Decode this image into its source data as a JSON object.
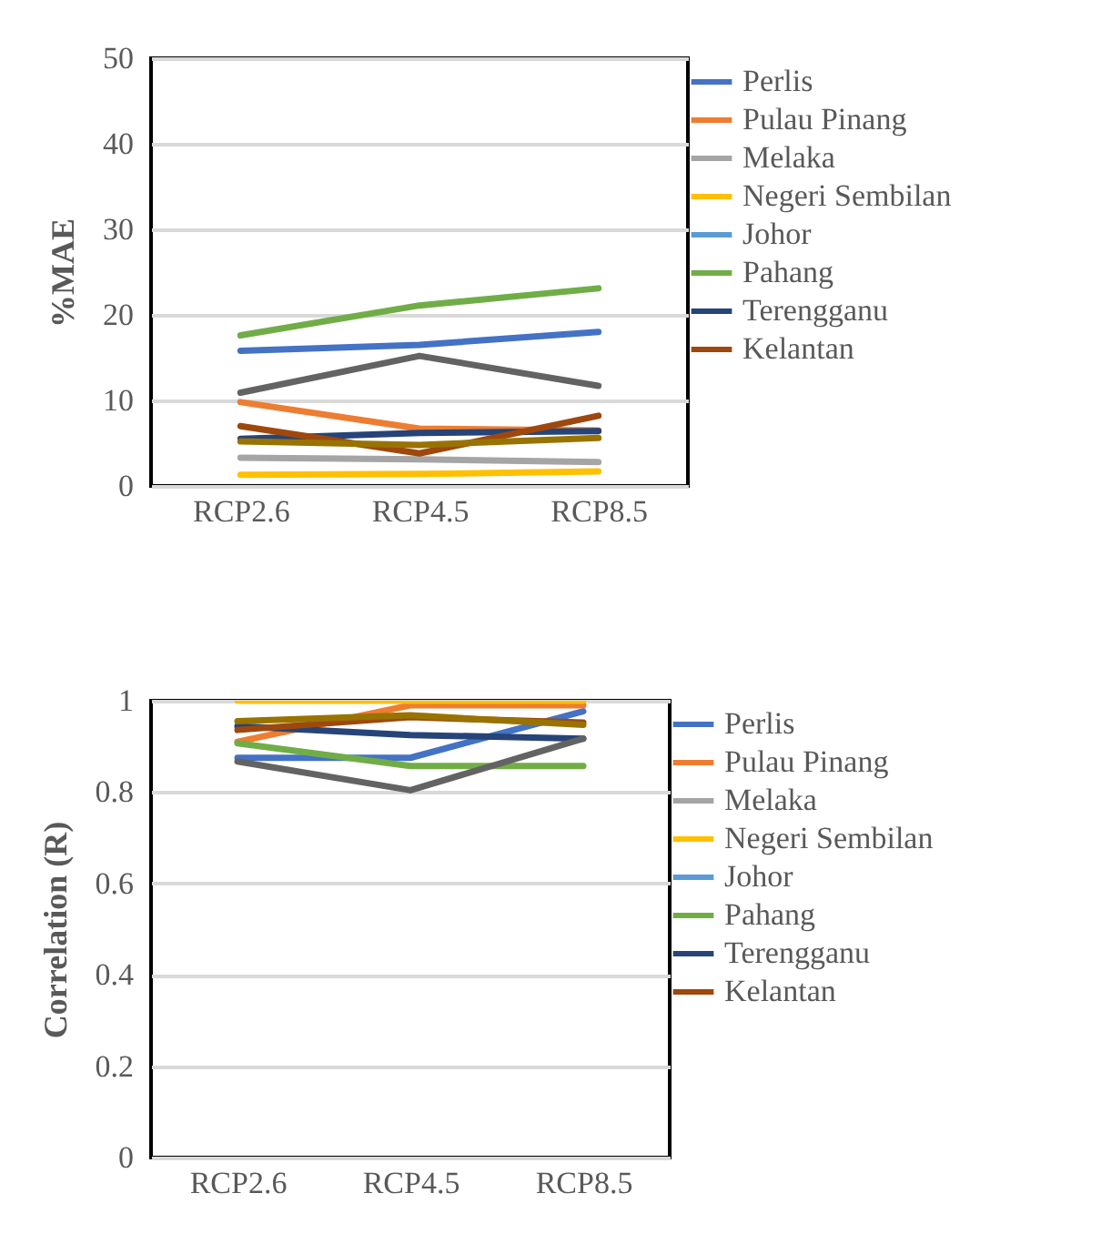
{
  "chart_data": [
    {
      "type": "line",
      "ylabel": "%MAE",
      "categories": [
        "RCP2.6",
        "RCP4.5",
        "RCP8.5"
      ],
      "ylim": [
        0,
        50
      ],
      "yticks": [
        0,
        10,
        20,
        30,
        40,
        50
      ],
      "grid": "y",
      "legend": "right",
      "series": [
        {
          "name": "Perlis",
          "color": "#4472c4",
          "values": [
            15.8,
            16.5,
            18.0
          ]
        },
        {
          "name": "Pulau Pinang",
          "color": "#ed7d31",
          "values": [
            9.8,
            6.7,
            6.5
          ]
        },
        {
          "name": "Melaka",
          "color": "#a5a5a5",
          "values": [
            3.3,
            3.1,
            2.8
          ]
        },
        {
          "name": "Negeri Sembilan",
          "color": "#ffc000",
          "values": [
            1.3,
            1.4,
            1.7
          ]
        },
        {
          "name": "Johor",
          "color": "#5b9bd5",
          "values": [
            null,
            null,
            null
          ]
        },
        {
          "name": "Pahang",
          "color": "#70ad47",
          "values": [
            17.6,
            21.1,
            23.1
          ]
        },
        {
          "name": "Terengganu",
          "color": "#264478",
          "values": [
            5.5,
            6.2,
            6.4
          ]
        },
        {
          "name": "Kelantan",
          "color": "#9e480e",
          "values": [
            7.0,
            3.8,
            8.2
          ]
        },
        {
          "color": "#636363",
          "values": [
            10.9,
            15.2,
            11.7
          ]
        },
        {
          "color": "#997300",
          "values": [
            5.2,
            4.8,
            5.6
          ]
        }
      ]
    },
    {
      "type": "line",
      "ylabel": "Correlation (R)",
      "categories": [
        "RCP2.6",
        "RCP4.5",
        "RCP8.5"
      ],
      "ylim": [
        0,
        1
      ],
      "yticks": [
        0,
        0.2,
        0.4,
        0.6,
        0.8,
        1
      ],
      "grid": "y",
      "legend": "right",
      "series": [
        {
          "name": "Perlis",
          "color": "#4472c4",
          "values": [
            0.875,
            0.875,
            0.977
          ]
        },
        {
          "name": "Pulau Pinang",
          "color": "#ed7d31",
          "values": [
            0.91,
            0.99,
            0.99
          ]
        },
        {
          "name": "Melaka",
          "color": "#a5a5a5",
          "values": [
            null,
            null,
            null
          ]
        },
        {
          "name": "Negeri Sembilan",
          "color": "#ffc000",
          "values": [
            1,
            1,
            1
          ]
        },
        {
          "name": "Johor",
          "color": "#5b9bd5",
          "values": [
            null,
            null,
            null
          ]
        },
        {
          "name": "Pahang",
          "color": "#70ad47",
          "values": [
            0.907,
            0.857,
            0.857
          ]
        },
        {
          "name": "Terengganu",
          "color": "#264478",
          "values": [
            0.944,
            0.925,
            0.917
          ]
        },
        {
          "name": "Kelantan",
          "color": "#9e480e",
          "values": [
            0.936,
            0.964,
            0.952
          ]
        },
        {
          "color": "#636363",
          "values": [
            0.867,
            0.804,
            0.917
          ]
        },
        {
          "color": "#997300",
          "values": [
            0.955,
            0.968,
            0.947
          ]
        }
      ]
    }
  ]
}
